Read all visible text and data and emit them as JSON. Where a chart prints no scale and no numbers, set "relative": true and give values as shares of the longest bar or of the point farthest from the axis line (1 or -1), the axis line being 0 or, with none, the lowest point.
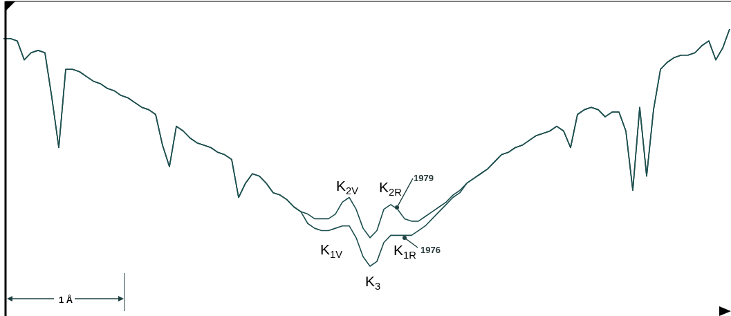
{
  "chart_data": {
    "type": "line",
    "relative": true,
    "categories": [
      null,
      null,
      null,
      null,
      null,
      null,
      null,
      null,
      null,
      null,
      null,
      null,
      null,
      null,
      null,
      null,
      null,
      null,
      null,
      null,
      null,
      null,
      null,
      null,
      null,
      null,
      null,
      null,
      null,
      null,
      null,
      null,
      null,
      null,
      null,
      null,
      null,
      null,
      null,
      null,
      null,
      null,
      null,
      null,
      null,
      null,
      null,
      null,
      null,
      null,
      null,
      null,
      null,
      null,
      null,
      null,
      null,
      null,
      null,
      null,
      null,
      null,
      null,
      null,
      null,
      null,
      null,
      null,
      null,
      null,
      null,
      null,
      null,
      null,
      null,
      null,
      null,
      null,
      null,
      null,
      null,
      null,
      null,
      null,
      null,
      null,
      null,
      null,
      null,
      null,
      null,
      null,
      null,
      null,
      null,
      null,
      null,
      null,
      null,
      null,
      null,
      null,
      null,
      null,
      null,
      null
    ],
    "series": [
      {
        "name": "1979",
        "color": "#1e4f4f",
        "values": [
          0.96,
          0.96,
          0.95,
          0.87,
          0.9,
          0.91,
          0.9,
          0.71,
          0.5,
          0.83,
          0.83,
          0.82,
          0.8,
          0.78,
          0.77,
          0.75,
          0.74,
          0.72,
          0.71,
          0.69,
          0.67,
          0.66,
          0.64,
          0.51,
          0.42,
          0.59,
          0.57,
          0.54,
          0.52,
          0.51,
          0.5,
          0.48,
          0.47,
          0.45,
          0.29,
          0.35,
          0.39,
          0.38,
          0.35,
          0.31,
          0.3,
          0.28,
          0.25,
          0.23,
          0.22,
          0.2,
          0.2,
          0.2,
          0.22,
          0.27,
          0.29,
          0.24,
          0.16,
          0.12,
          0.15,
          0.24,
          0.26,
          0.24,
          0.2,
          0.19,
          0.19,
          0.21,
          0.23,
          0.25,
          0.27,
          0.3,
          0.32,
          0.35,
          0.37,
          0.39,
          0.41,
          0.44,
          0.47,
          0.48,
          0.5,
          0.51,
          0.53,
          0.55,
          0.56,
          0.57,
          0.59,
          0.57,
          0.5,
          0.64,
          0.66,
          0.67,
          0.66,
          0.63,
          0.65,
          0.65,
          0.57,
          0.32,
          0.67,
          0.38,
          0.66,
          0.83,
          0.86,
          0.88,
          0.89,
          0.89,
          0.9,
          0.93,
          0.95,
          0.87,
          0.92,
          1.0
        ]
      },
      {
        "name": "1976",
        "color": "#1e4f4f",
        "values": [
          0.96,
          0.96,
          0.95,
          0.87,
          0.9,
          0.91,
          0.9,
          0.71,
          0.5,
          0.83,
          0.83,
          0.82,
          0.8,
          0.78,
          0.77,
          0.75,
          0.74,
          0.72,
          0.71,
          0.69,
          0.67,
          0.66,
          0.64,
          0.51,
          0.42,
          0.59,
          0.57,
          0.54,
          0.52,
          0.51,
          0.5,
          0.48,
          0.47,
          0.45,
          0.29,
          0.35,
          0.39,
          0.38,
          0.35,
          0.31,
          0.3,
          0.28,
          0.25,
          0.23,
          0.18,
          0.16,
          0.15,
          0.15,
          0.16,
          0.17,
          0.17,
          0.12,
          0.04,
          0.0,
          0.02,
          0.1,
          0.13,
          0.13,
          0.13,
          0.13,
          0.15,
          0.17,
          0.2,
          0.23,
          0.26,
          0.29,
          0.31,
          0.35,
          0.37,
          0.39,
          0.41,
          0.44,
          0.47,
          0.48,
          0.5,
          0.51,
          0.53,
          0.55,
          0.56,
          0.57,
          0.59,
          0.57,
          0.5,
          0.64,
          0.66,
          0.67,
          0.66,
          0.63,
          0.65,
          0.65,
          0.57,
          0.32,
          0.67,
          0.38,
          0.66,
          0.83,
          0.86,
          0.88,
          0.89,
          0.89,
          0.9,
          0.93,
          0.95,
          0.87,
          0.92,
          1.0
        ]
      }
    ],
    "annotations": [
      "K$_{2V}$",
      "K$_{2R}$",
      "K$_{1V}$",
      "K$_{1R}$",
      "K$_{3}$",
      "1 Å"
    ]
  }
}
